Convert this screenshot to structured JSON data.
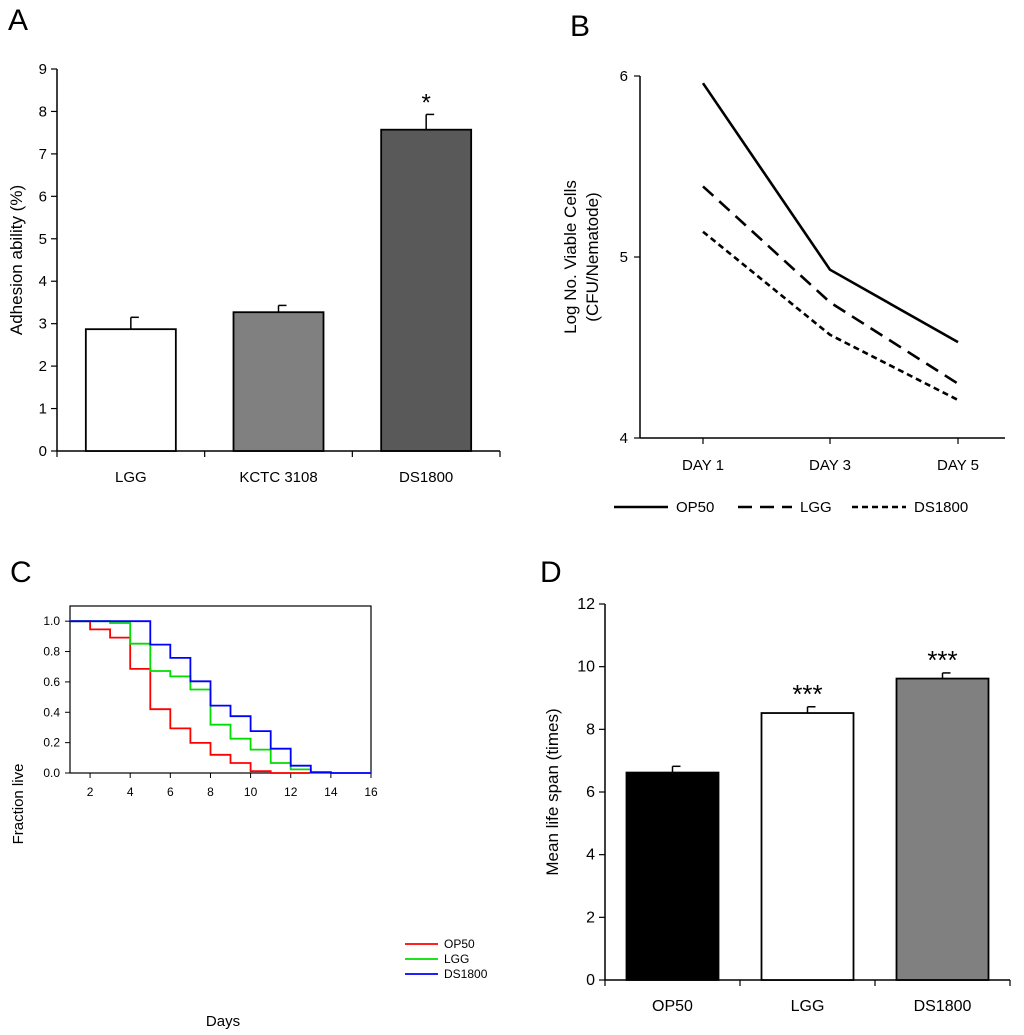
{
  "panels": {
    "A": "A",
    "B": "B",
    "C": "C",
    "D": "D"
  },
  "chart_data": [
    {
      "id": "A",
      "type": "bar",
      "title": "",
      "xlabel": "",
      "ylabel": "Adhesion ability (%)",
      "ylim": [
        0,
        9
      ],
      "yticks": [
        "0",
        "1",
        "2",
        "3",
        "4",
        "5",
        "6",
        "7",
        "8",
        "9"
      ],
      "categories": [
        "LGG",
        "KCTC 3108",
        "DS1800"
      ],
      "values": [
        2.87,
        3.27,
        7.57
      ],
      "errors": [
        0.28,
        0.16,
        0.36
      ],
      "significance": [
        "",
        "",
        "*"
      ],
      "colors": [
        "#ffffff",
        "#808080",
        "#595959"
      ]
    },
    {
      "id": "B",
      "type": "line",
      "title": "",
      "xlabel": "",
      "ylabel_lines": [
        "Log No. Viable Cells",
        "(CFU/Nematode)"
      ],
      "ylim": [
        4,
        6
      ],
      "yticks": [
        "4",
        "5",
        "6"
      ],
      "categories": [
        "DAY 1",
        "DAY 3",
        "DAY 5"
      ],
      "series": [
        {
          "name": "OP50",
          "values": [
            5.96,
            4.93,
            4.53
          ],
          "dash": "solid"
        },
        {
          "name": "LGG",
          "values": [
            5.39,
            4.75,
            4.3
          ],
          "dash": "dashed"
        },
        {
          "name": "DS1800",
          "values": [
            5.14,
            4.57,
            4.21
          ],
          "dash": "dotted"
        }
      ]
    },
    {
      "id": "C",
      "type": "line",
      "title": "",
      "xlabel": "Days",
      "ylabel": "Fraction live",
      "xlim": [
        1,
        16
      ],
      "ylim": [
        0,
        1.1
      ],
      "xticks": [
        "2",
        "4",
        "6",
        "8",
        "10",
        "12",
        "14",
        "16"
      ],
      "yticks": [
        "0.0",
        "0.2",
        "0.4",
        "0.6",
        "0.8",
        "1.0"
      ],
      "series": [
        {
          "name": "OP50",
          "color": "#ff0000",
          "steps": [
            [
              1,
              1.0
            ],
            [
              2,
              0.946
            ],
            [
              3,
              0.892
            ],
            [
              4,
              0.686
            ],
            [
              5,
              0.42
            ],
            [
              6,
              0.294
            ],
            [
              7,
              0.198
            ],
            [
              8,
              0.12
            ],
            [
              9,
              0.066
            ],
            [
              10,
              0.012
            ],
            [
              11,
              0.0
            ],
            [
              14,
              0.0
            ]
          ]
        },
        {
          "name": "LGG",
          "color": "#00dd00",
          "steps": [
            [
              1,
              1.0
            ],
            [
              3,
              0.988
            ],
            [
              4,
              0.852
            ],
            [
              5,
              0.672
            ],
            [
              6,
              0.636
            ],
            [
              7,
              0.55
            ],
            [
              8,
              0.318
            ],
            [
              9,
              0.226
            ],
            [
              10,
              0.154
            ],
            [
              11,
              0.066
            ],
            [
              12,
              0.024
            ],
            [
              13,
              0.0
            ],
            [
              14,
              0.0
            ]
          ]
        },
        {
          "name": "DS1800",
          "color": "#0000ff",
          "steps": [
            [
              1,
              1.0
            ],
            [
              5,
              0.846
            ],
            [
              6,
              0.758
            ],
            [
              7,
              0.604
            ],
            [
              8,
              0.444
            ],
            [
              9,
              0.374
            ],
            [
              10,
              0.276
            ],
            [
              11,
              0.16
            ],
            [
              12,
              0.048
            ],
            [
              13,
              0.006
            ],
            [
              14,
              0.0
            ],
            [
              16,
              0.0
            ]
          ]
        }
      ]
    },
    {
      "id": "D",
      "type": "bar",
      "title": "",
      "xlabel": "",
      "ylabel": "Mean life span (times)",
      "ylim": [
        0,
        12
      ],
      "yticks": [
        "0",
        "2",
        "4",
        "6",
        "8",
        "10",
        "12"
      ],
      "categories": [
        "OP50",
        "LGG",
        "DS1800"
      ],
      "values": [
        6.62,
        8.52,
        9.62
      ],
      "errors": [
        0.2,
        0.2,
        0.18
      ],
      "significance": [
        "",
        "***",
        "***"
      ],
      "colors": [
        "#000000",
        "#ffffff",
        "#808080"
      ]
    }
  ]
}
